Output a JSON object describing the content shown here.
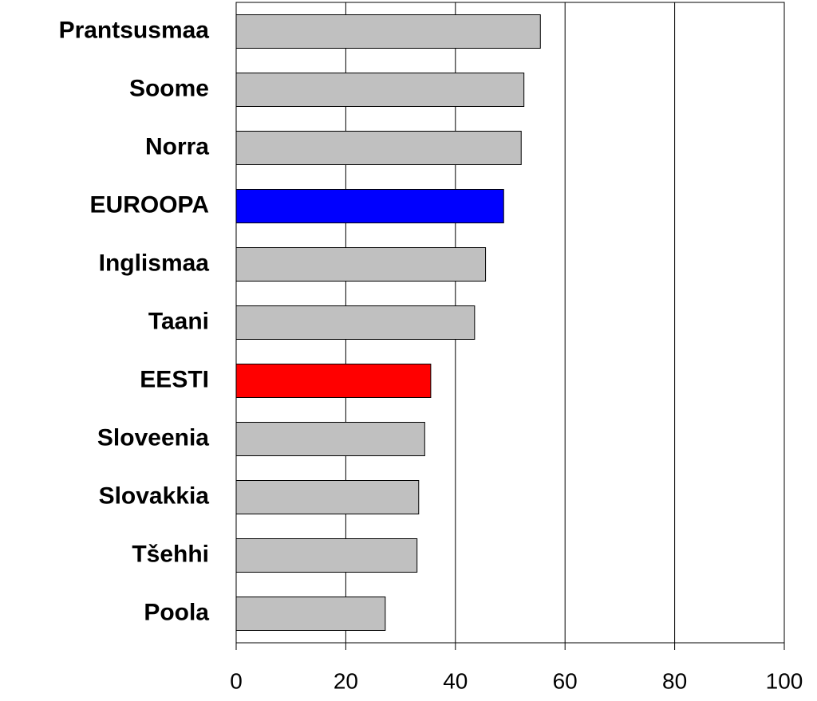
{
  "chart_data": {
    "type": "bar",
    "orientation": "horizontal",
    "categories": [
      "Prantsusmaa",
      "Soome",
      "Norra",
      "EUROOPA",
      "Inglismaa",
      "Taani",
      "EESTI",
      "Sloveenia",
      "Slovakkia",
      "Tšehhi",
      "Poola"
    ],
    "values": [
      55.5,
      52.5,
      52,
      48.8,
      45.5,
      43.5,
      35.5,
      34.4,
      33.3,
      33,
      27.2
    ],
    "colors": [
      "#c0c0c0",
      "#c0c0c0",
      "#c0c0c0",
      "#0000ff",
      "#c0c0c0",
      "#c0c0c0",
      "#ff0000",
      "#c0c0c0",
      "#c0c0c0",
      "#c0c0c0",
      "#c0c0c0"
    ],
    "xlim": [
      0,
      100
    ],
    "xticks": [
      0,
      20,
      40,
      60,
      80,
      100
    ],
    "grid": true
  }
}
